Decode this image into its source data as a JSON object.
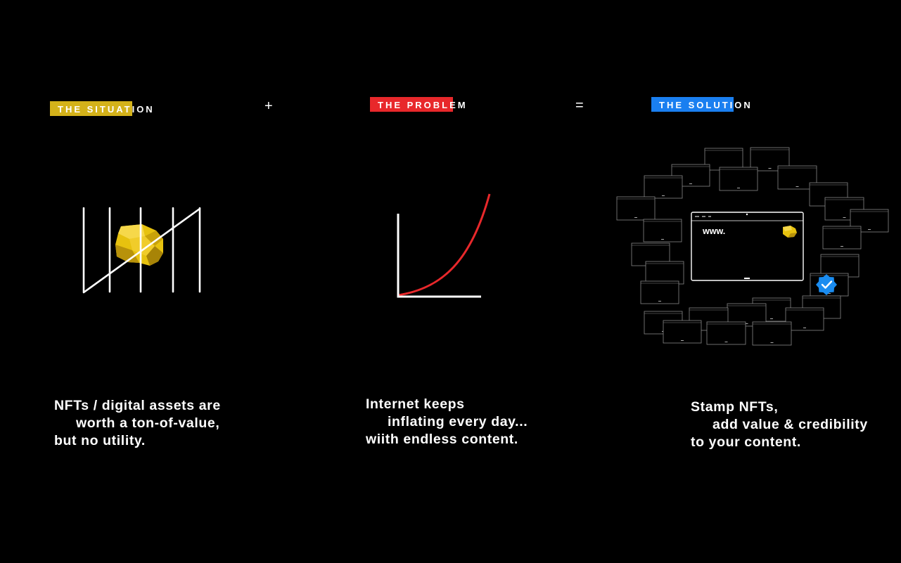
{
  "panels": [
    {
      "tag": "THE SITUATION",
      "tag_color": "#d4b21a",
      "lines": [
        "NFTs / digital assets are",
        "worth a ton-of-value,",
        "but no utility."
      ]
    },
    {
      "tag": "THE PROBLEM",
      "tag_color": "#e8282b",
      "lines": [
        "Internet keeps",
        "inflating every day...",
        "wiith endless content."
      ]
    },
    {
      "tag": "THE SOLUTION",
      "tag_color": "#1a7ff0",
      "lines": [
        "Stamp NFTs,",
        "add value & credibility",
        "to your content."
      ],
      "browser_text": "www."
    }
  ],
  "operators": [
    "+",
    "="
  ],
  "colors": {
    "background": "#000000",
    "gold": "#e7c20f",
    "red_curve": "#e8282b",
    "verified_blue": "#1a8cf0"
  }
}
